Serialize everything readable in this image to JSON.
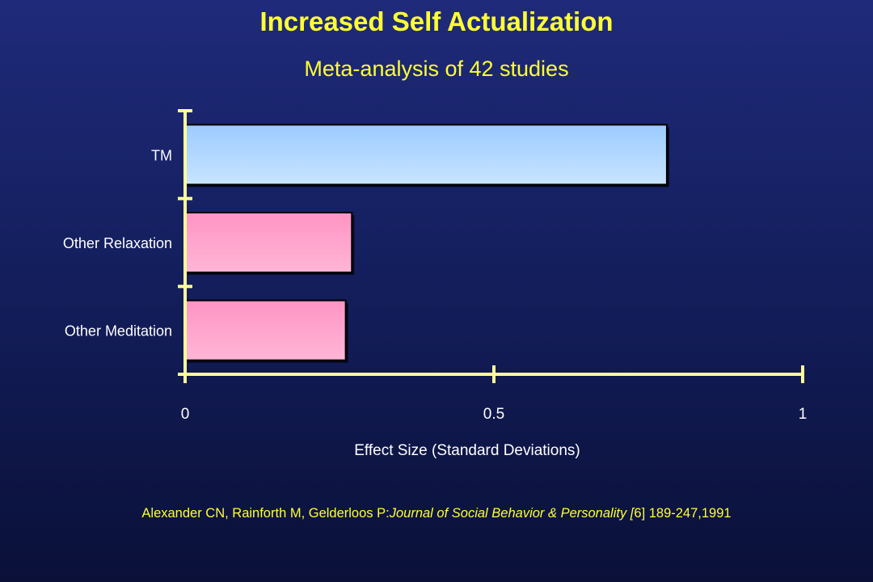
{
  "slide": {
    "title": "Increased Self Actualization",
    "subtitle": "Meta-analysis of 42 studies",
    "citation": {
      "prefix": "Alexander CN, Rainforth M, Gelderloos P:",
      "journal": "Journal of  Social Behavior & Personality [",
      "volume": "6",
      "suffix": "] 189-247,1991"
    }
  },
  "chart_data": {
    "type": "bar",
    "orientation": "horizontal",
    "categories": [
      "TM",
      "Other Relaxation",
      "Other Meditation"
    ],
    "values": [
      0.78,
      0.27,
      0.26
    ],
    "xlabel": "Effect Size (Standard Deviations)",
    "xlim": [
      0,
      1
    ],
    "xticks": [
      0,
      0.5,
      1
    ],
    "xtick_labels": [
      "0",
      "0.5",
      "1"
    ],
    "bar_colors": [
      "#a9d2ff",
      "#ff9cc8",
      "#ff9cc8"
    ],
    "axis_color": "#ffff99",
    "text_color": "#ffffff"
  }
}
